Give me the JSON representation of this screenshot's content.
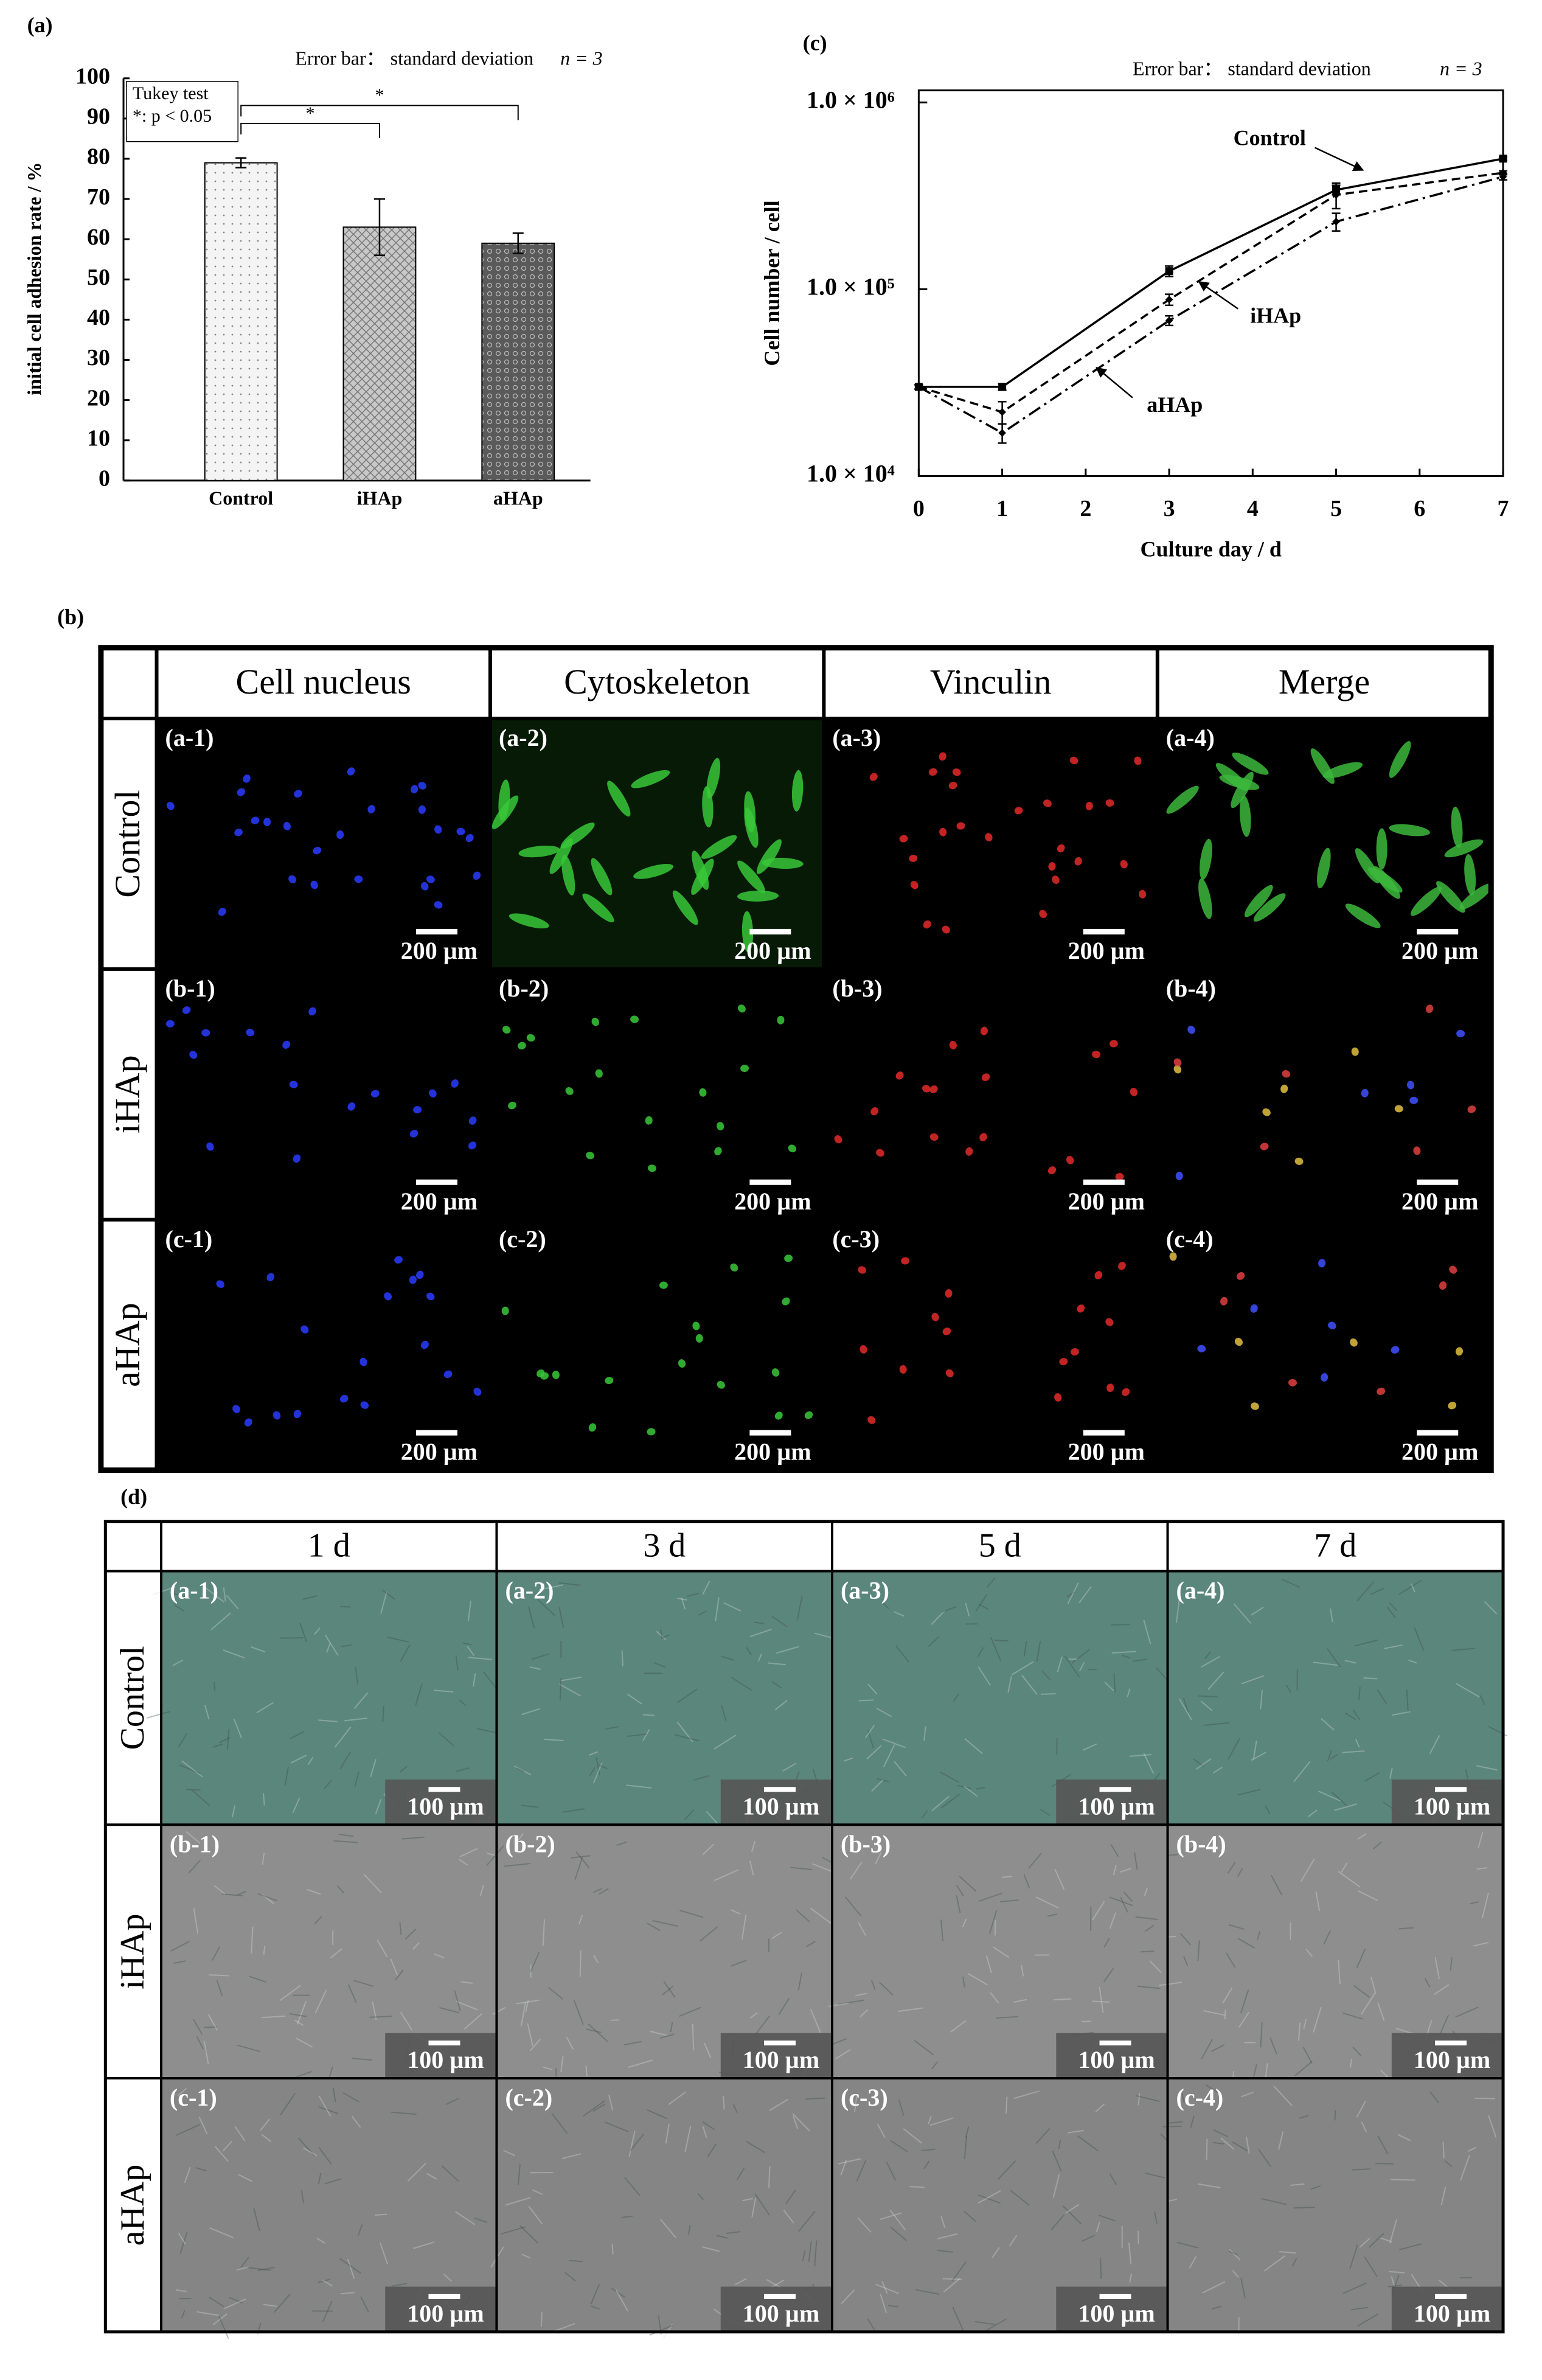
{
  "chart_data": [
    {
      "type": "bar",
      "label": "(a)",
      "error_note": "Error bar： standard deviation",
      "n_note": "n = 3",
      "ylabel": "initial cell adhesion rate / %",
      "categories": [
        "Control",
        "iHAp",
        "aHAp"
      ],
      "values": [
        79,
        63,
        59
      ],
      "errors": [
        1.2,
        7,
        2.5
      ],
      "colors": [
        "#f4f4f4",
        "#c8c8c8",
        "#5a5a5a"
      ],
      "ylim": [
        0,
        100
      ],
      "yticks": [
        0,
        10,
        20,
        30,
        40,
        50,
        60,
        70,
        80,
        90,
        100
      ],
      "test_name": "Tukey test",
      "significance_note": "*: p < 0.05",
      "significance_marks": [
        "*",
        "*"
      ]
    },
    {
      "type": "line",
      "label": "(c)",
      "error_note": "Error bar： standard deviation",
      "n_note": "n = 3",
      "xlabel": "Culture day / d",
      "ylabel": "Cell number / cell",
      "log_y": true,
      "x": [
        0,
        1,
        3,
        5,
        7
      ],
      "series": [
        {
          "name": "Control",
          "color": "#000000",
          "line_style": "solid",
          "values": [
            30000,
            30000,
            125000,
            340000,
            500000
          ],
          "errors": [
            800,
            1200,
            8000,
            20000,
            10000
          ]
        },
        {
          "name": "iHAp",
          "color": "#000000",
          "line_style": "dashed",
          "values": [
            30000,
            22000,
            88000,
            320000,
            420000
          ],
          "errors": [
            800,
            3000,
            6000,
            50000,
            10000
          ]
        },
        {
          "name": "aHAp",
          "color": "#000000",
          "line_style": "dashdot",
          "values": [
            30000,
            17000,
            68000,
            230000,
            400000
          ],
          "errors": [
            800,
            2000,
            4000,
            25000,
            15000
          ]
        }
      ],
      "xlim": [
        0,
        7
      ],
      "xticks": [
        0,
        1,
        2,
        3,
        4,
        5,
        6,
        7
      ],
      "ylim": [
        10000,
        1000000
      ],
      "yticks": [
        {
          "value": 10000,
          "label": "1.0 × 10⁴"
        },
        {
          "value": 100000,
          "label": "1.0 × 10⁵"
        },
        {
          "value": 1000000,
          "label": "1.0 × 10⁶"
        }
      ]
    }
  ],
  "panel_b": {
    "label": "(b)",
    "columns": [
      "Cell nucleus",
      "Cytoskeleton",
      "Vinculin",
      "Merge"
    ],
    "rows": [
      "Control",
      "iHAp",
      "aHAp"
    ],
    "cells": [
      [
        "(a-1)",
        "(a-2)",
        "(a-3)",
        "(a-4)"
      ],
      [
        "(b-1)",
        "(b-2)",
        "(b-3)",
        "(b-4)"
      ],
      [
        "(c-1)",
        "(c-2)",
        "(c-3)",
        "(c-4)"
      ]
    ],
    "scale_bar": "200 µm"
  },
  "panel_d": {
    "label": "(d)",
    "columns": [
      "1 d",
      "3 d",
      "5 d",
      "7 d"
    ],
    "rows": [
      "Control",
      "iHAp",
      "aHAp"
    ],
    "cells": [
      [
        "(a-1)",
        "(a-2)",
        "(a-3)",
        "(a-4)"
      ],
      [
        "(b-1)",
        "(b-2)",
        "(b-3)",
        "(b-4)"
      ],
      [
        "(c-1)",
        "(c-2)",
        "(c-3)",
        "(c-4)"
      ]
    ],
    "scale_bar": "100 µm"
  }
}
